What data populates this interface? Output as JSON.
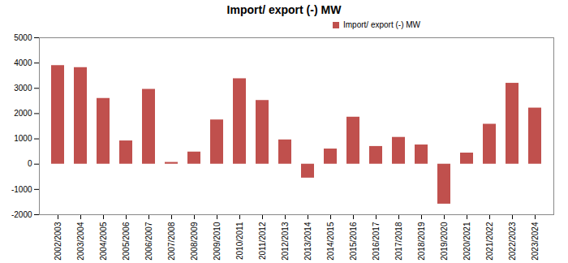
{
  "chart_data": {
    "type": "bar",
    "title": "Import/ export (-) MW",
    "categories": [
      "2002/2003",
      "2003/2004",
      "2004/2005",
      "2005/2006",
      "2006/2007",
      "2007/2008",
      "2008/2009",
      "2009/2010",
      "2010/2011",
      "2011/2012",
      "2012/2013",
      "2013/2014",
      "2014/2015",
      "2015/2016",
      "2016/2017",
      "2017/2018",
      "2018/2019",
      "2019/2020",
      "2020/2021",
      "2021/2022",
      "2022/2023",
      "2023/2024"
    ],
    "series": [
      {
        "name": "Import/ export (-) MW",
        "color": "#c0504d",
        "values": [
          3900,
          3820,
          2600,
          920,
          2960,
          70,
          480,
          1750,
          3380,
          2520,
          960,
          -550,
          600,
          1860,
          700,
          1060,
          760,
          -1580,
          440,
          1580,
          3200,
          2220
        ]
      }
    ],
    "ylim": [
      -2000,
      5000
    ],
    "yticks": [
      -2000,
      -1000,
      0,
      1000,
      2000,
      3000,
      4000,
      5000
    ],
    "grid": false,
    "legend": "top-right"
  }
}
